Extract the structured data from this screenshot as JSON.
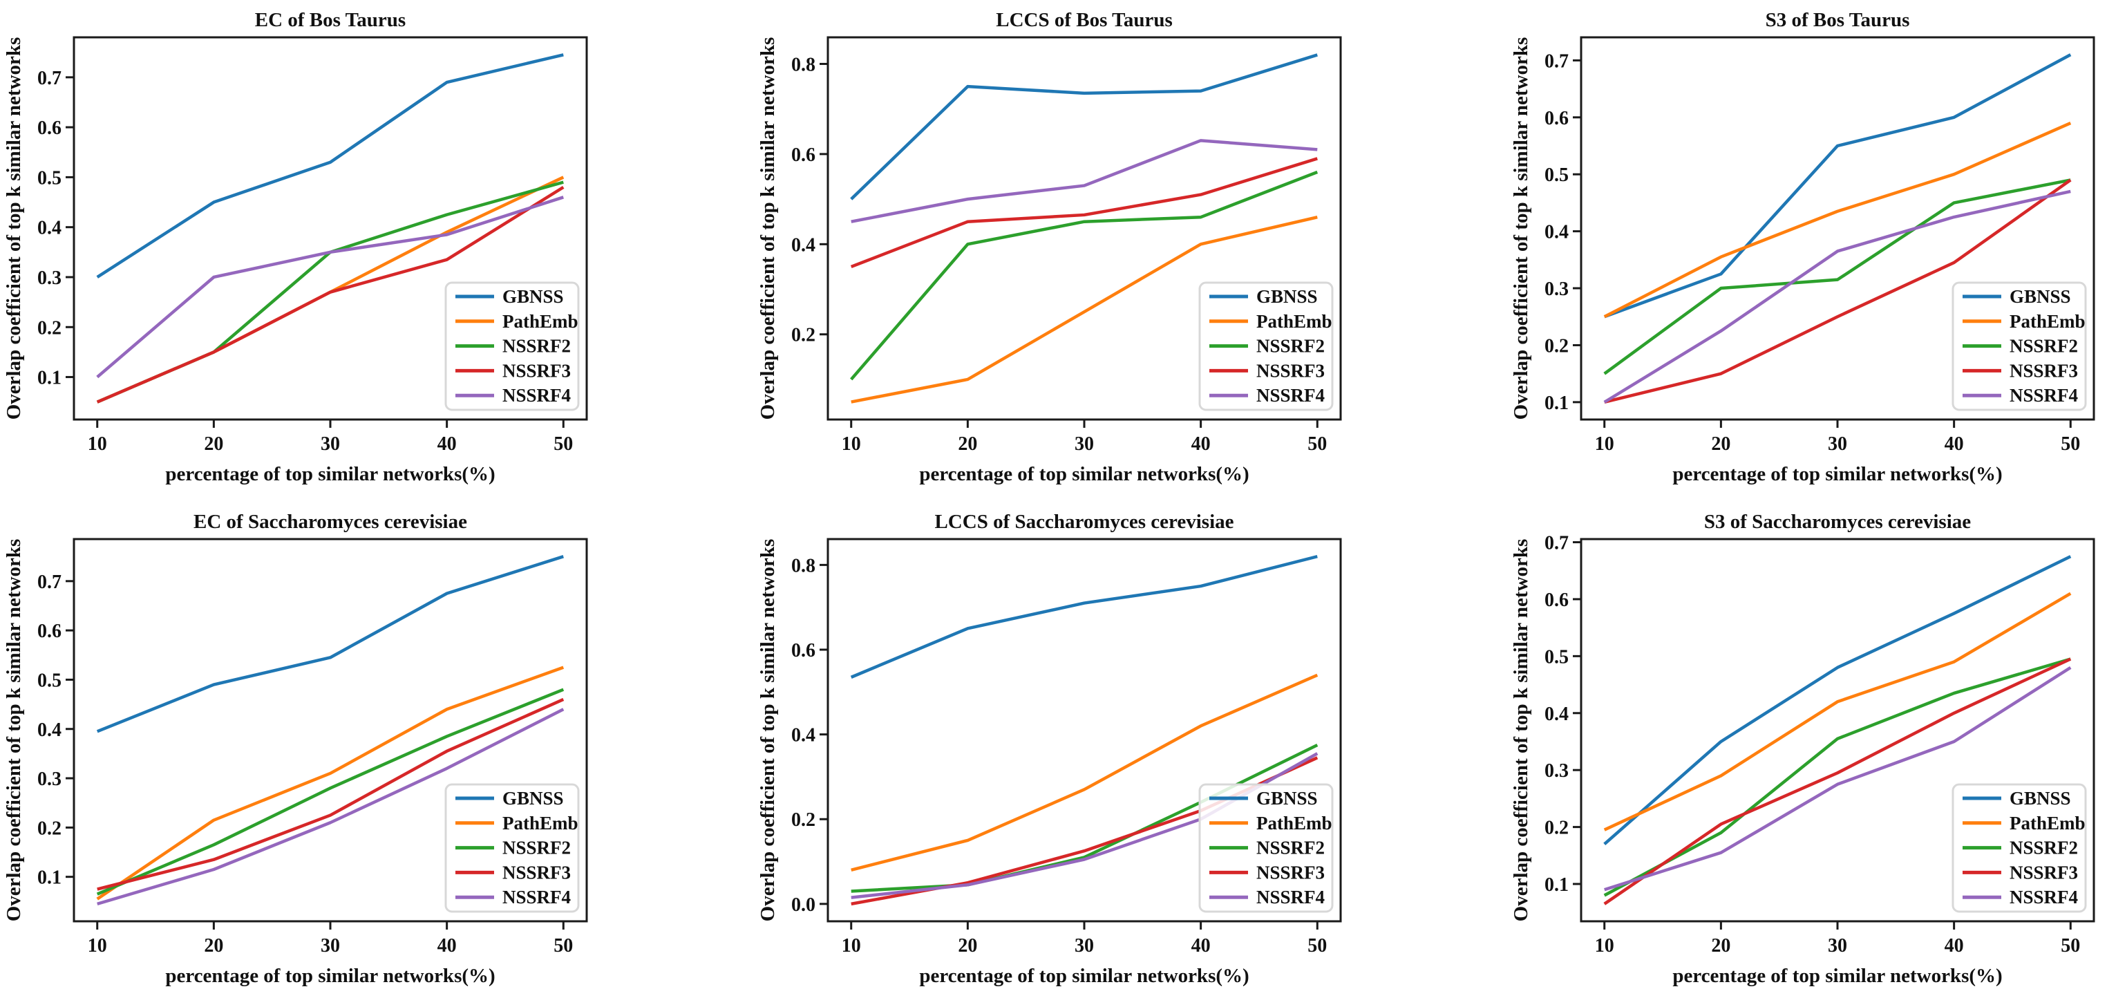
{
  "figure": {
    "background": "#ffffff",
    "xlabel": "percentage of top similar networks(%)",
    "ylabel": "Overlap coefficient of top k similar networks",
    "x_tick_labels": [
      "10",
      "20",
      "30",
      "40",
      "50"
    ]
  },
  "legend": {
    "position": "lower right",
    "entries": [
      {
        "label": "GBNSS",
        "color": "#1f77b4"
      },
      {
        "label": "PathEmb",
        "color": "#ff7f0e"
      },
      {
        "label": "NSSRF2",
        "color": "#2ca02c"
      },
      {
        "label": "NSSRF3",
        "color": "#d62728"
      },
      {
        "label": "NSSRF4",
        "color": "#9467bd"
      }
    ]
  },
  "chart_data": [
    {
      "type": "line",
      "title": "EC of Bos Taurus",
      "xlabel": "percentage of top similar networks(%)",
      "ylabel": "Overlap coefficient of top k similar networks",
      "x": [
        10,
        20,
        30,
        40,
        50
      ],
      "xlim": [
        8,
        52
      ],
      "ylim": [
        0.015,
        0.78
      ],
      "yticks": [
        0.1,
        0.2,
        0.3,
        0.4,
        0.5,
        0.6,
        0.7
      ],
      "grid": false,
      "legend_position": "lower right",
      "series": [
        {
          "name": "GBNSS",
          "values": [
            0.3,
            0.45,
            0.53,
            0.69,
            0.745
          ]
        },
        {
          "name": "PathEmb",
          "values": [
            0.05,
            0.15,
            0.27,
            0.39,
            0.5
          ]
        },
        {
          "name": "NSSRF2",
          "values": [
            0.05,
            0.15,
            0.35,
            0.425,
            0.49
          ]
        },
        {
          "name": "NSSRF3",
          "values": [
            0.05,
            0.15,
            0.27,
            0.335,
            0.48
          ]
        },
        {
          "name": "NSSRF4",
          "values": [
            0.1,
            0.3,
            0.35,
            0.385,
            0.46
          ]
        }
      ]
    },
    {
      "type": "line",
      "title": "LCCS of Bos Taurus",
      "xlabel": "percentage of top similar networks(%)",
      "ylabel": "Overlap coefficient of top k similar networks",
      "x": [
        10,
        20,
        30,
        40,
        50
      ],
      "xlim": [
        8,
        52
      ],
      "ylim": [
        0.011,
        0.859
      ],
      "yticks": [
        0.2,
        0.4,
        0.6,
        0.8
      ],
      "grid": false,
      "legend_position": "lower right",
      "series": [
        {
          "name": "GBNSS",
          "values": [
            0.5,
            0.75,
            0.735,
            0.74,
            0.82
          ]
        },
        {
          "name": "PathEmb",
          "values": [
            0.05,
            0.1,
            0.25,
            0.4,
            0.46
          ]
        },
        {
          "name": "NSSRF2",
          "values": [
            0.1,
            0.4,
            0.45,
            0.46,
            0.56
          ]
        },
        {
          "name": "NSSRF3",
          "values": [
            0.35,
            0.45,
            0.465,
            0.51,
            0.59
          ]
        },
        {
          "name": "NSSRF4",
          "values": [
            0.45,
            0.5,
            0.53,
            0.63,
            0.61
          ]
        }
      ]
    },
    {
      "type": "line",
      "title": "S3 of Bos Taurus",
      "xlabel": "percentage of top similar networks(%)",
      "ylabel": "Overlap coefficient of top k similar networks",
      "x": [
        10,
        20,
        30,
        40,
        50
      ],
      "xlim": [
        8,
        52
      ],
      "ylim": [
        0.0695,
        0.7405
      ],
      "yticks": [
        0.1,
        0.2,
        0.3,
        0.4,
        0.5,
        0.6,
        0.7
      ],
      "grid": false,
      "legend_position": "lower right",
      "series": [
        {
          "name": "GBNSS",
          "values": [
            0.25,
            0.325,
            0.55,
            0.6,
            0.71
          ]
        },
        {
          "name": "PathEmb",
          "values": [
            0.25,
            0.355,
            0.435,
            0.5,
            0.59
          ]
        },
        {
          "name": "NSSRF2",
          "values": [
            0.15,
            0.3,
            0.315,
            0.45,
            0.49
          ]
        },
        {
          "name": "NSSRF3",
          "values": [
            0.1,
            0.15,
            0.25,
            0.345,
            0.49
          ]
        },
        {
          "name": "NSSRF4",
          "values": [
            0.1,
            0.225,
            0.365,
            0.425,
            0.47
          ]
        }
      ]
    },
    {
      "type": "line",
      "title": "EC of Saccharomyces cerevisiae",
      "xlabel": "percentage of top similar networks(%)",
      "ylabel": "Overlap coefficient of top k similar networks",
      "x": [
        10,
        20,
        30,
        40,
        50
      ],
      "xlim": [
        8,
        52
      ],
      "ylim": [
        0.0098,
        0.7853
      ],
      "yticks": [
        0.1,
        0.2,
        0.3,
        0.4,
        0.5,
        0.6,
        0.7
      ],
      "grid": false,
      "legend_position": "lower right",
      "series": [
        {
          "name": "GBNSS",
          "values": [
            0.395,
            0.49,
            0.545,
            0.675,
            0.75
          ]
        },
        {
          "name": "PathEmb",
          "values": [
            0.055,
            0.215,
            0.31,
            0.44,
            0.525
          ]
        },
        {
          "name": "NSSRF2",
          "values": [
            0.065,
            0.165,
            0.28,
            0.385,
            0.48
          ]
        },
        {
          "name": "NSSRF3",
          "values": [
            0.075,
            0.135,
            0.225,
            0.355,
            0.46
          ]
        },
        {
          "name": "NSSRF4",
          "values": [
            0.045,
            0.115,
            0.21,
            0.32,
            0.44
          ]
        }
      ]
    },
    {
      "type": "line",
      "title": "LCCS of Saccharomyces cerevisiae",
      "xlabel": "percentage of top similar networks(%)",
      "ylabel": "Overlap coefficient of top k similar networks",
      "x": [
        10,
        20,
        30,
        40,
        50
      ],
      "xlim": [
        8,
        52
      ],
      "ylim": [
        -0.041,
        0.861
      ],
      "yticks": [
        0.0,
        0.2,
        0.4,
        0.6,
        0.8
      ],
      "grid": false,
      "legend_position": "lower right",
      "series": [
        {
          "name": "GBNSS",
          "values": [
            0.535,
            0.65,
            0.71,
            0.75,
            0.82
          ]
        },
        {
          "name": "PathEmb",
          "values": [
            0.08,
            0.15,
            0.27,
            0.42,
            0.54
          ]
        },
        {
          "name": "NSSRF2",
          "values": [
            0.03,
            0.045,
            0.11,
            0.24,
            0.375
          ]
        },
        {
          "name": "NSSRF3",
          "values": [
            0.0,
            0.05,
            0.125,
            0.22,
            0.345
          ]
        },
        {
          "name": "NSSRF4",
          "values": [
            0.015,
            0.045,
            0.105,
            0.2,
            0.355
          ]
        }
      ]
    },
    {
      "type": "line",
      "title": "S3 of Saccharomyces cerevisiae",
      "xlabel": "percentage of top similar networks(%)",
      "ylabel": "Overlap coefficient of top k similar networks",
      "x": [
        10,
        20,
        30,
        40,
        50
      ],
      "xlim": [
        8,
        52
      ],
      "ylim": [
        0.0345,
        0.7055
      ],
      "yticks": [
        0.1,
        0.2,
        0.3,
        0.4,
        0.5,
        0.6,
        0.7
      ],
      "grid": false,
      "legend_position": "lower right",
      "series": [
        {
          "name": "GBNSS",
          "values": [
            0.17,
            0.35,
            0.48,
            0.575,
            0.675
          ]
        },
        {
          "name": "PathEmb",
          "values": [
            0.195,
            0.29,
            0.42,
            0.49,
            0.61
          ]
        },
        {
          "name": "NSSRF2",
          "values": [
            0.08,
            0.19,
            0.355,
            0.435,
            0.495
          ]
        },
        {
          "name": "NSSRF3",
          "values": [
            0.065,
            0.205,
            0.295,
            0.4,
            0.495
          ]
        },
        {
          "name": "NSSRF4",
          "values": [
            0.09,
            0.155,
            0.275,
            0.35,
            0.48
          ]
        }
      ]
    }
  ]
}
